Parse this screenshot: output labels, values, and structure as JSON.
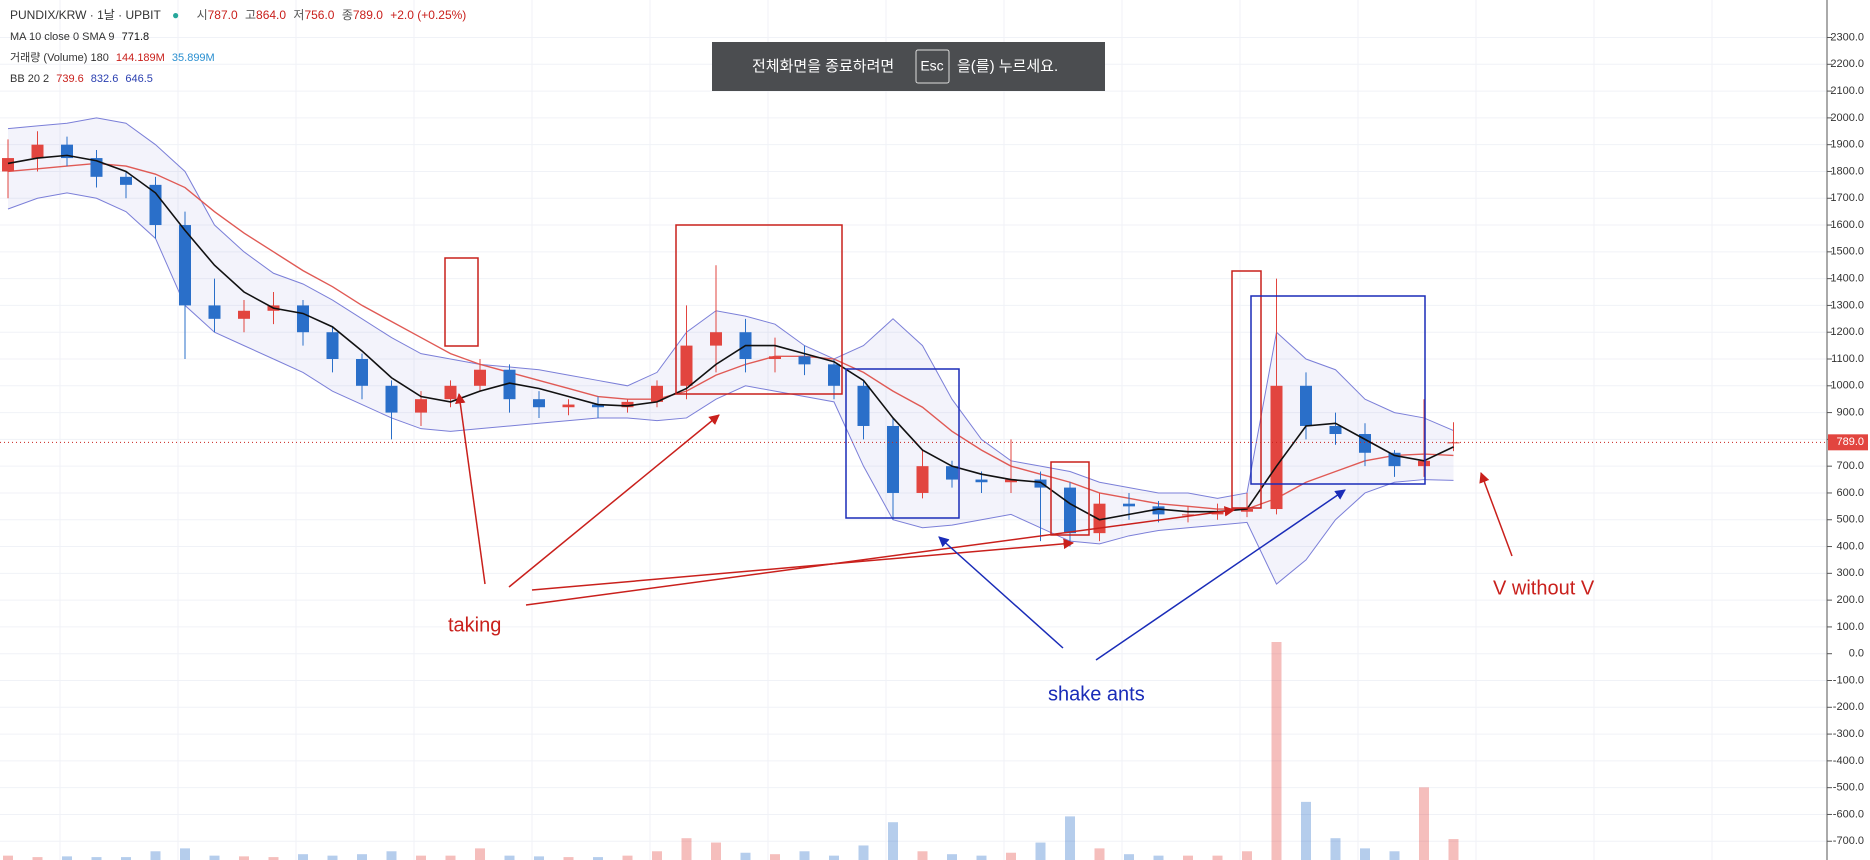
{
  "header": {
    "symbol": "PUNDIX/KRW · 1날 · UPBIT",
    "ohlc": [
      {
        "label": "시",
        "value": "787.0"
      },
      {
        "label": "고",
        "value": "864.0"
      },
      {
        "label": "저",
        "value": "756.0"
      },
      {
        "label": "종",
        "value": "789.0"
      }
    ],
    "change": "+2.0 (+0.25%)"
  },
  "indicators": {
    "ma": {
      "label": "MA 10 close 0 SMA 9",
      "values": [
        "771.8"
      ]
    },
    "volume": {
      "label": "거래량 (Volume) 180",
      "values": [
        "144.189M",
        "35.899M"
      ]
    },
    "bb": {
      "label": "BB 20 2",
      "values": [
        "739.6",
        "832.6",
        "646.5"
      ]
    }
  },
  "toast": {
    "before": "전체화면을 종료하려면",
    "key": "Esc",
    "after": "을(를) 누르세요."
  },
  "chart_data": {
    "type": "candlestick",
    "open": [
      1800,
      1850,
      1900,
      1850,
      1780,
      1750,
      1600,
      1300,
      1250,
      1280,
      1300,
      1200,
      1100,
      1000,
      900,
      950,
      1000,
      1060,
      950,
      920,
      930,
      920,
      940,
      1000,
      1150,
      1200,
      1100,
      1110,
      1080,
      1000,
      850,
      600,
      700,
      650,
      640,
      650,
      620,
      450,
      560,
      550,
      520,
      520,
      530,
      540,
      1000,
      850,
      820,
      750,
      700,
      787
    ],
    "high": [
      1920,
      1950,
      1930,
      1880,
      1800,
      1780,
      1650,
      1400,
      1320,
      1350,
      1320,
      1220,
      1120,
      1020,
      980,
      1020,
      1100,
      1080,
      980,
      950,
      960,
      950,
      1020,
      1300,
      1450,
      1250,
      1180,
      1150,
      1100,
      1020,
      880,
      760,
      720,
      680,
      800,
      680,
      640,
      600,
      600,
      570,
      550,
      560,
      600,
      1400,
      1050,
      900,
      860,
      760,
      950,
      864
    ],
    "low": [
      1700,
      1800,
      1820,
      1740,
      1700,
      1550,
      1100,
      1200,
      1200,
      1230,
      1150,
      1050,
      950,
      800,
      850,
      920,
      980,
      900,
      880,
      890,
      880,
      900,
      920,
      950,
      1050,
      1050,
      1050,
      1040,
      950,
      800,
      500,
      580,
      620,
      600,
      600,
      420,
      400,
      420,
      500,
      490,
      490,
      500,
      510,
      520,
      800,
      780,
      700,
      660,
      660,
      756
    ],
    "close": [
      1850,
      1900,
      1850,
      1780,
      1750,
      1600,
      1300,
      1250,
      1280,
      1300,
      1200,
      1100,
      1000,
      900,
      950,
      1000,
      1060,
      950,
      920,
      930,
      920,
      940,
      1000,
      1150,
      1200,
      1100,
      1110,
      1080,
      1000,
      850,
      600,
      700,
      650,
      640,
      650,
      620,
      450,
      560,
      550,
      520,
      520,
      530,
      540,
      1000,
      850,
      820,
      750,
      700,
      720,
      789
    ],
    "ma": [
      1830,
      1850,
      1860,
      1840,
      1800,
      1720,
      1580,
      1450,
      1350,
      1290,
      1270,
      1220,
      1130,
      1030,
      960,
      940,
      980,
      1010,
      990,
      960,
      930,
      925,
      940,
      990,
      1080,
      1150,
      1150,
      1120,
      1090,
      1020,
      880,
      760,
      700,
      670,
      650,
      640,
      560,
      500,
      520,
      540,
      530,
      530,
      540,
      700,
      850,
      860,
      800,
      740,
      720,
      772
    ],
    "bb_basis": [
      1800,
      1810,
      1820,
      1830,
      1820,
      1790,
      1740,
      1650,
      1570,
      1500,
      1430,
      1370,
      1300,
      1240,
      1180,
      1120,
      1080,
      1050,
      1020,
      990,
      960,
      950,
      950,
      980,
      1040,
      1080,
      1110,
      1110,
      1100,
      1050,
      980,
      920,
      830,
      760,
      700,
      670,
      640,
      600,
      580,
      560,
      550,
      540,
      540,
      580,
      640,
      680,
      720,
      740,
      745,
      740
    ],
    "bb_upper": [
      1960,
      1970,
      1980,
      2000,
      1980,
      1900,
      1800,
      1600,
      1500,
      1420,
      1380,
      1320,
      1250,
      1180,
      1120,
      1100,
      1080,
      1070,
      1060,
      1040,
      1020,
      1000,
      1050,
      1200,
      1280,
      1260,
      1230,
      1150,
      1100,
      1150,
      1250,
      1150,
      950,
      800,
      720,
      700,
      680,
      640,
      620,
      600,
      600,
      580,
      600,
      1200,
      1100,
      1060,
      950,
      900,
      880,
      833
    ],
    "bb_lower": [
      1660,
      1700,
      1720,
      1700,
      1650,
      1550,
      1300,
      1200,
      1150,
      1100,
      1050,
      980,
      930,
      880,
      840,
      830,
      840,
      850,
      860,
      870,
      880,
      880,
      870,
      880,
      950,
      1000,
      980,
      960,
      940,
      700,
      500,
      470,
      480,
      500,
      520,
      470,
      420,
      410,
      440,
      460,
      470,
      480,
      490,
      260,
      350,
      500,
      600,
      640,
      650,
      647
    ],
    "volume": [
      30,
      20,
      25,
      20,
      20,
      60,
      80,
      30,
      25,
      20,
      40,
      30,
      40,
      60,
      30,
      30,
      80,
      30,
      25,
      20,
      20,
      30,
      60,
      150,
      120,
      50,
      40,
      60,
      30,
      100,
      260,
      60,
      40,
      30,
      50,
      120,
      300,
      80,
      40,
      30,
      30,
      30,
      60,
      1500,
      400,
      150,
      80,
      60,
      500,
      144
    ],
    "volume_ylim": [
      0,
      1500
    ],
    "ylim": [
      -770,
      2440
    ],
    "yticks": [
      {
        "value": 2300,
        "label": "2300.0"
      },
      {
        "value": 2200,
        "label": "2200.0"
      },
      {
        "value": 2100,
        "label": "2100.0"
      },
      {
        "value": 2000,
        "label": "2000.0"
      },
      {
        "value": 1900,
        "label": "1900.0"
      },
      {
        "value": 1800,
        "label": "1800.0"
      },
      {
        "value": 1700,
        "label": "1700.0"
      },
      {
        "value": 1600,
        "label": "1600.0"
      },
      {
        "value": 1500,
        "label": "1500.0"
      },
      {
        "value": 1400,
        "label": "1400.0"
      },
      {
        "value": 1300,
        "label": "1300.0"
      },
      {
        "value": 1200,
        "label": "1200.0"
      },
      {
        "value": 1100,
        "label": "1100.0"
      },
      {
        "value": 1000,
        "label": "1000.0"
      },
      {
        "value": 900,
        "label": "900.0"
      },
      {
        "value": 800,
        "label": "800.0"
      },
      {
        "value": 700,
        "label": "700.0"
      },
      {
        "value": 600,
        "label": "600.0"
      },
      {
        "value": 500,
        "label": "500.0"
      },
      {
        "value": 400,
        "label": "400.0"
      },
      {
        "value": 300,
        "label": "300.0"
      },
      {
        "value": 200,
        "label": "200.0"
      },
      {
        "value": 100,
        "label": "100.0"
      },
      {
        "value": 0,
        "label": "0.0"
      },
      {
        "value": -100,
        "label": "-100.0"
      },
      {
        "value": -200,
        "label": "-200.0"
      },
      {
        "value": -300,
        "label": "-300.0"
      },
      {
        "value": -400,
        "label": "-400.0"
      },
      {
        "value": -500,
        "label": "-500.0"
      },
      {
        "value": -600,
        "label": "-600.0"
      },
      {
        "value": -700,
        "label": "-700.0"
      }
    ],
    "last_price": {
      "value": 789,
      "label": "789.0"
    },
    "grid": true,
    "colors": {
      "up": "#e2453f",
      "down": "#2a6fc9",
      "ma": "#111111",
      "basis": "#e05a55",
      "band": "#7b7fd8"
    },
    "annotations": [
      "taking",
      "shake ants",
      "V without V"
    ]
  }
}
